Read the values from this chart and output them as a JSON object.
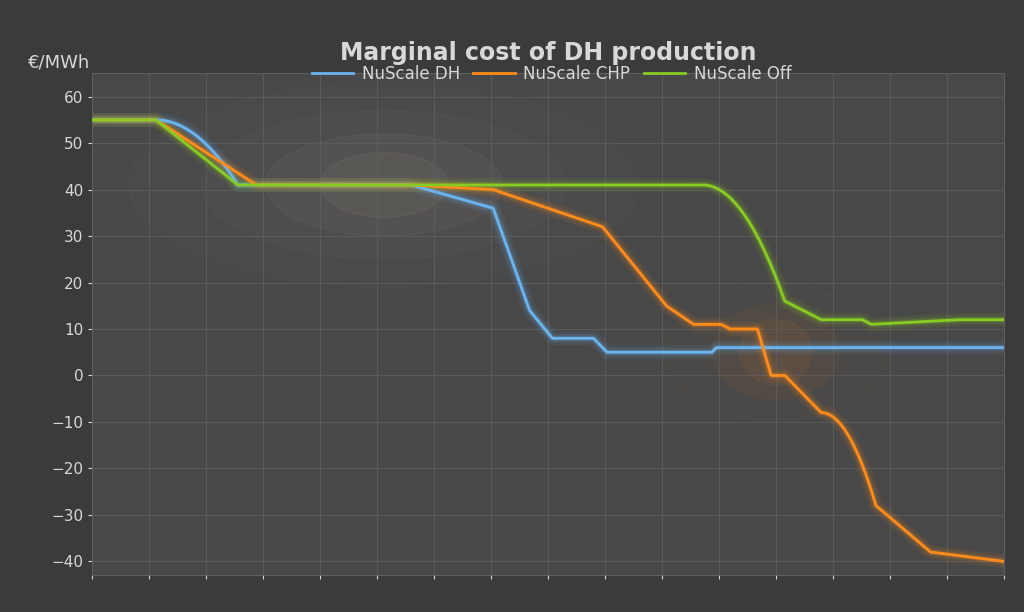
{
  "title": "Marginal cost of DH production",
  "ylabel_text": "€/MWh",
  "background_color": "#3b3b3b",
  "plot_background_color": "#484848",
  "grid_color": "#5e5e5e",
  "text_color": "#d8d8d8",
  "ylim": [
    -43,
    65
  ],
  "yticks": [
    60,
    50,
    40,
    30,
    20,
    10,
    0,
    -10,
    -20,
    -30,
    -40
  ],
  "line_colors": {
    "dh": "#6ab4f0",
    "chp": "#ff8c1a",
    "off": "#88cc22"
  },
  "legend_labels": [
    "NuScale DH",
    "NuScale CHP",
    "NuScale Off"
  ]
}
